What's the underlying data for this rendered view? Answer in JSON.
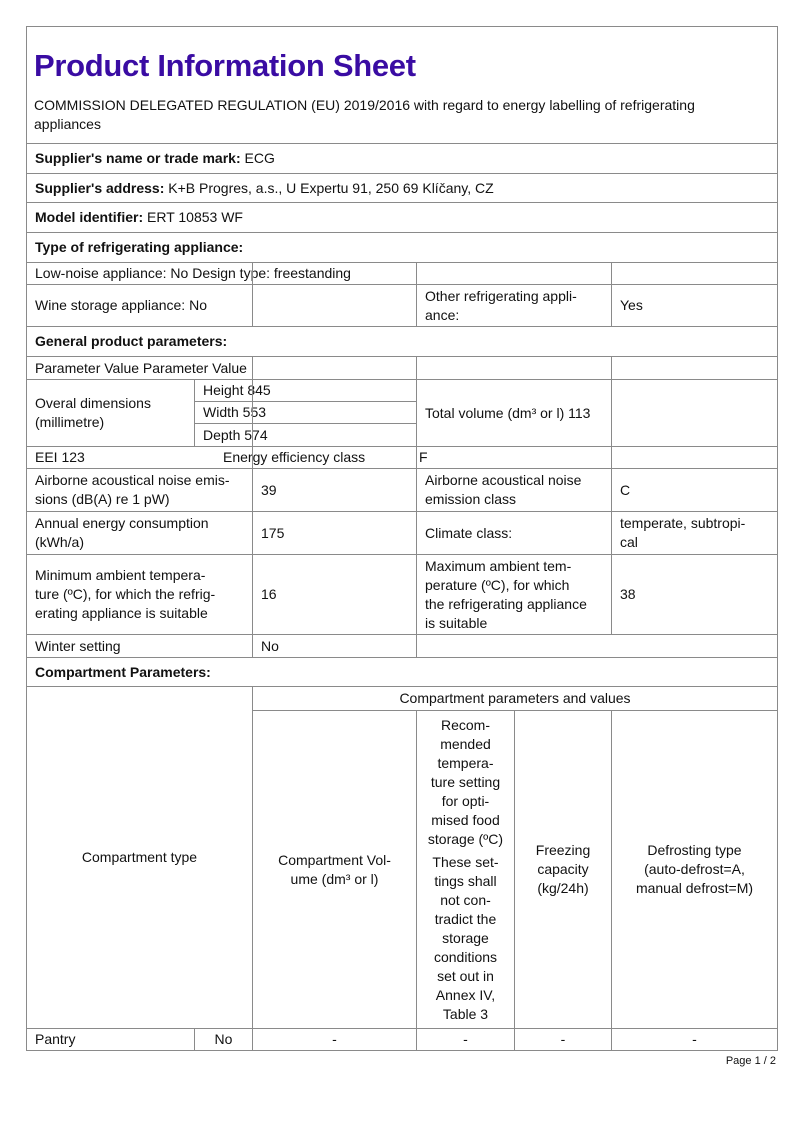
{
  "title": "Product Information Sheet",
  "subtitle": "COMMISSION DELEGATED REGULATION (EU) 2019/2016 with regard to energy labelling of refrigerating appliances",
  "colors": {
    "title": "#3a0ca3",
    "border": "#8a8a8a"
  },
  "supplier_name": {
    "label": "Supplier's name or trade mark:",
    "value": "ECG"
  },
  "supplier_address": {
    "label": "Supplier's address:",
    "value": "K+B Progres, a.s., U Expertu 91, 250 69 Klíčany, CZ"
  },
  "model": {
    "label": "Model identifier:",
    "value": "ERT 10853 WF"
  },
  "type_heading": "Type of refrigerating appliance:",
  "low_noise": "Low-noise appliance: No Design type: freestanding",
  "wine_storage": "Wine storage appliance: No",
  "other_label": "Other refrigerating appli-\nance:",
  "other_value": "Yes",
  "general_heading": "General product parameters:",
  "param_header": "Parameter Value Parameter Value",
  "dimensions_label": "Overal dimensions\n(millimetre)",
  "height": "Height 845",
  "width": "Width 553",
  "depth": "Depth 574",
  "total_volume": "Total volume (dm³ or l) 113",
  "eei": "EEI 123",
  "energy_class_label": "Energy efficiency class",
  "energy_class_value": "F",
  "noise_label": "Airborne acoustical noise emis-\nsions (dB(A) re 1 pW)",
  "noise_value": "39",
  "noise_class_label": "Airborne acoustical noise\nemission class",
  "noise_class_value": "C",
  "annual_label": "Annual energy consumption\n(kWh/a)",
  "annual_value": "175",
  "climate_label": "Climate class:",
  "climate_value": "temperate, subtropi-\ncal",
  "min_temp_label": "Minimum ambient tempera-\nture (ºC), for which the refrig-\nerating appliance is suitable",
  "min_temp_value": "16",
  "max_temp_label": "Maximum ambient tem-\nperature (ºC), for which\nthe refrigerating appliance\nis suitable",
  "max_temp_value": "38",
  "winter_label": "Winter setting",
  "winter_value": "No",
  "compartment_heading": "Compartment Parameters:",
  "comp_type": "Compartment type",
  "comp_params": "Compartment parameters and values",
  "comp_volume": "Compartment Vol-\nume (dm³ or l)",
  "comp_temp": "Recom-\nmended\ntempera-\nture setting\nfor opti-\nmised food\nstorage (ºC)",
  "comp_temp_note": "These set-\ntings shall\nnot con-\ntradict the\nstorage\nconditions\nset out in\nAnnex IV,\nTable 3",
  "comp_freezing": "Freezing\ncapacity\n(kg/24h)",
  "comp_defrost": "Defrosting type\n(auto-defrost=A,\nmanual defrost=M)",
  "pantry": {
    "name": "Pantry",
    "present": "No",
    "volume": "-",
    "temp": "-",
    "freezing": "-",
    "defrost": "-"
  },
  "page": "Page 1 / 2"
}
